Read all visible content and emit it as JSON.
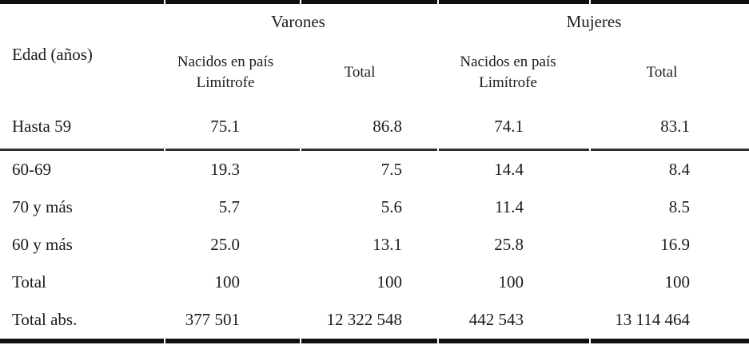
{
  "table": {
    "corner_header": "Edad (años)",
    "groups": {
      "varones": "Varones",
      "mujeres": "Mujeres"
    },
    "sub_headers": {
      "varones_limitrofe": "Nacidos en país Limítrofe",
      "varones_total": "Total",
      "mujeres_limitrofe": "Nacidos en país Limítrofe",
      "mujeres_total": "Total"
    },
    "rows": [
      {
        "label": "Hasta 59",
        "values": [
          "75.1",
          "86.8",
          "74.1",
          "83.1"
        ]
      },
      {
        "label": "60-69",
        "values": [
          "19.3",
          "7.5",
          "14.4",
          "8.4"
        ]
      },
      {
        "label": "70 y más",
        "values": [
          "5.7",
          "5.6",
          "11.4",
          "8.5"
        ]
      },
      {
        "label": "60 y más",
        "values": [
          "25.0",
          "13.1",
          "25.8",
          "16.9"
        ]
      },
      {
        "label": "Total",
        "values": [
          "100",
          "100",
          "100",
          "100"
        ]
      },
      {
        "label": "Total abs.",
        "values": [
          "377 501",
          "12 322 548",
          "442 543",
          "13 114 464"
        ]
      }
    ],
    "colors": {
      "text": "#1c1c1c",
      "rule_thick": "#101010",
      "rule_mid": "#2e2e2e",
      "background": "#ffffff"
    }
  }
}
